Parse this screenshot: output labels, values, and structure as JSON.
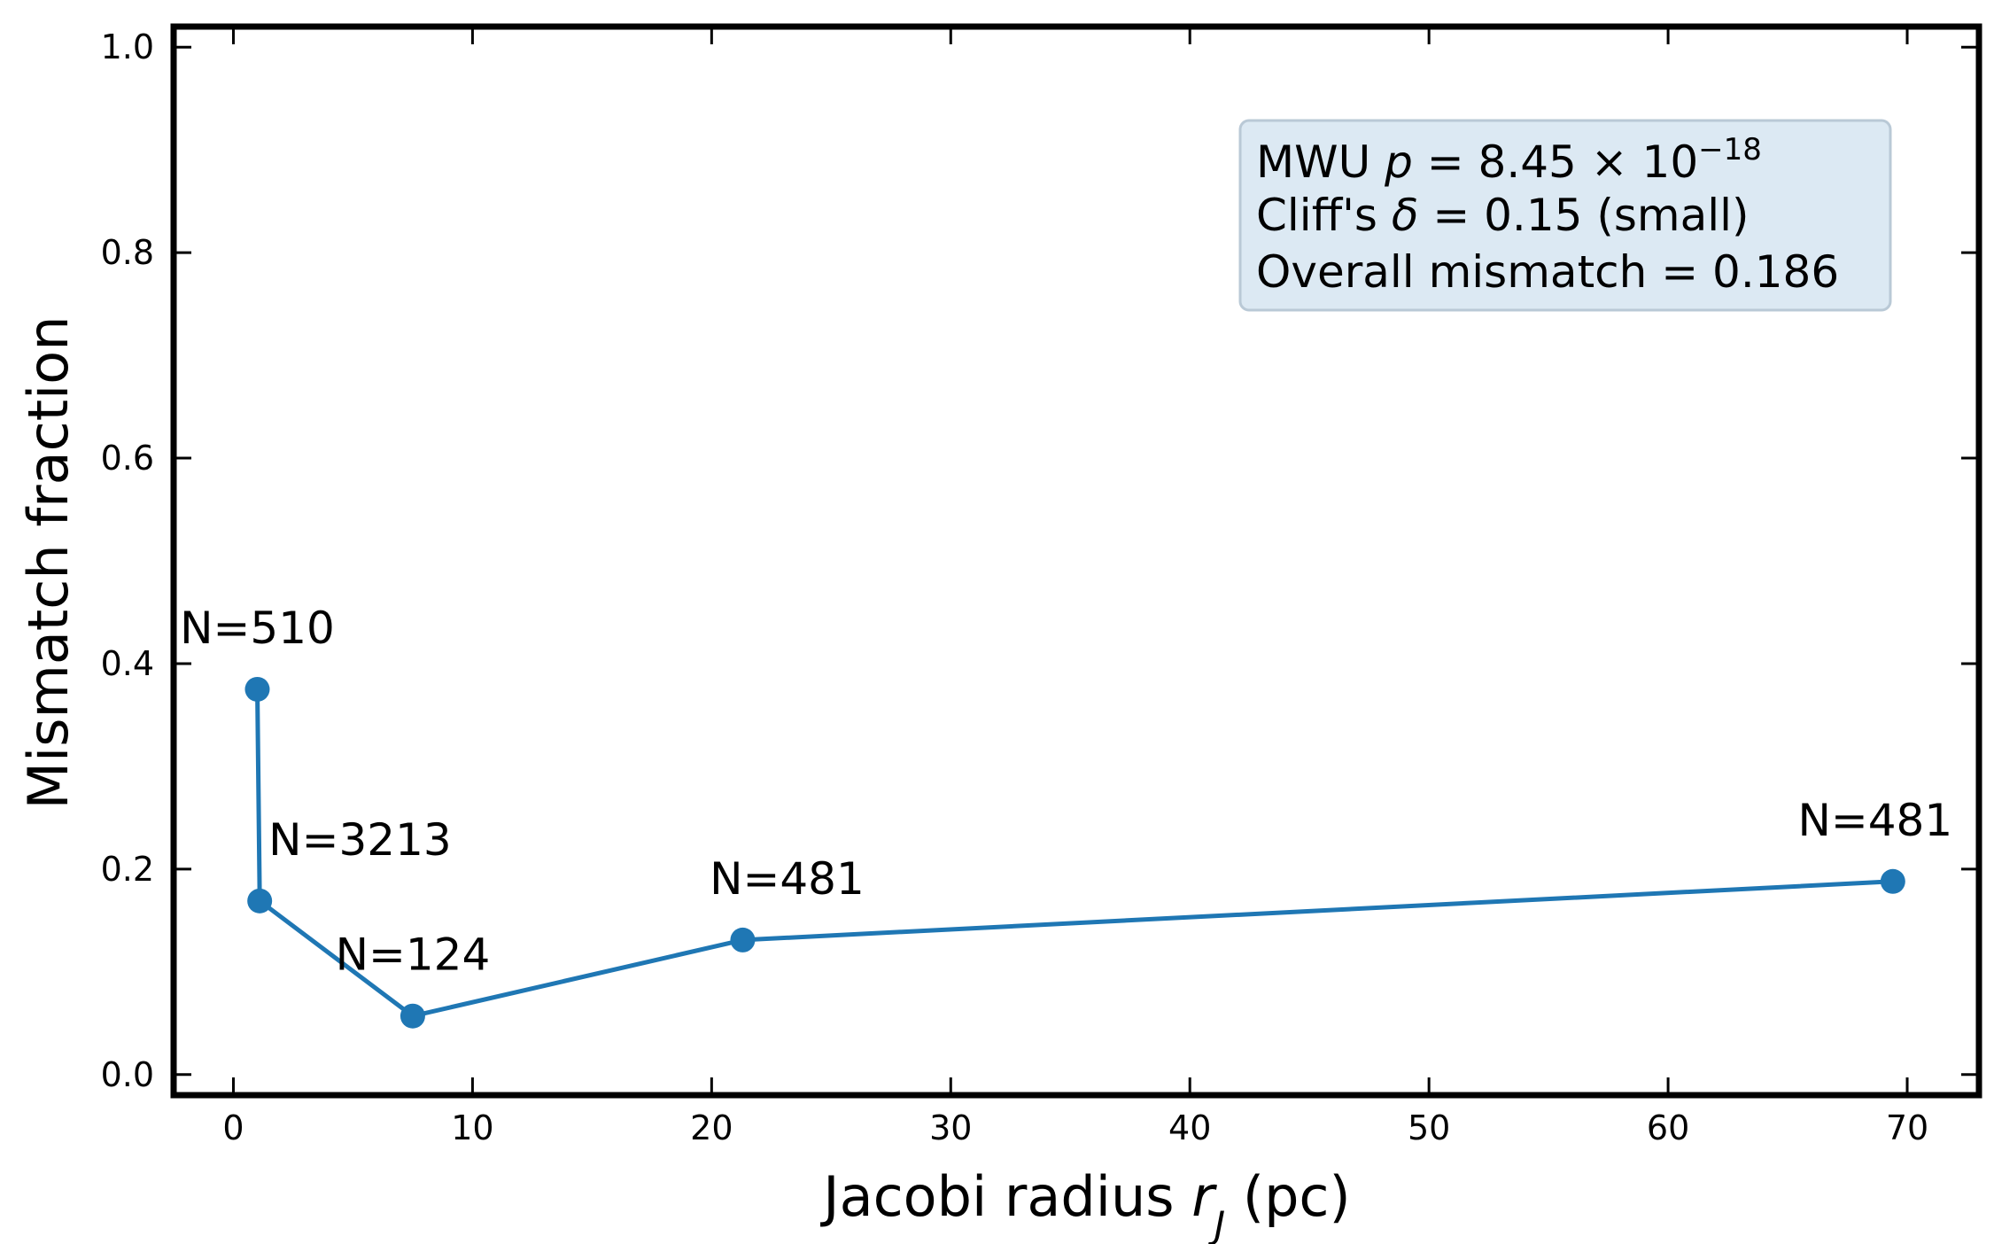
{
  "chart_data": {
    "type": "line",
    "xlabel": "Jacobi radius",
    "xlabel_symbol": "r",
    "xlabel_subscript": "J",
    "xlabel_unit": "(pc)",
    "ylabel": "Mismatch fraction",
    "xlim": [
      -2.5,
      73
    ],
    "ylim": [
      -0.02,
      1.02
    ],
    "x_ticks": [
      0,
      10,
      20,
      30,
      40,
      50,
      60,
      70
    ],
    "y_ticks": [
      0.0,
      0.2,
      0.4,
      0.6,
      0.8,
      1.0
    ],
    "x_tick_labels": [
      "0",
      "10",
      "20",
      "30",
      "40",
      "50",
      "60",
      "70"
    ],
    "y_tick_labels": [
      "0.0",
      "0.2",
      "0.4",
      "0.6",
      "0.8",
      "1.0"
    ],
    "grid": false,
    "series": [
      {
        "color": "#1f77b4",
        "x": [
          1.0,
          1.1,
          7.5,
          21.3,
          69.4
        ],
        "y": [
          0.375,
          0.169,
          0.057,
          0.131,
          0.188
        ],
        "labels": [
          "N=510",
          "N=3213",
          "N=124",
          "N=481",
          "N=481"
        ]
      }
    ],
    "stats_box": {
      "line1_prefix": "MWU ",
      "line1_var": "p",
      "line1_mid": " = 8.45 × 10",
      "line1_exp": "−18",
      "line2_prefix": "Cliff's ",
      "line2_var": "δ",
      "line2_rest": " = 0.15 (small)",
      "line3": "Overall mismatch = 0.186",
      "background": "#dce9f3",
      "placement": "top-right"
    }
  }
}
